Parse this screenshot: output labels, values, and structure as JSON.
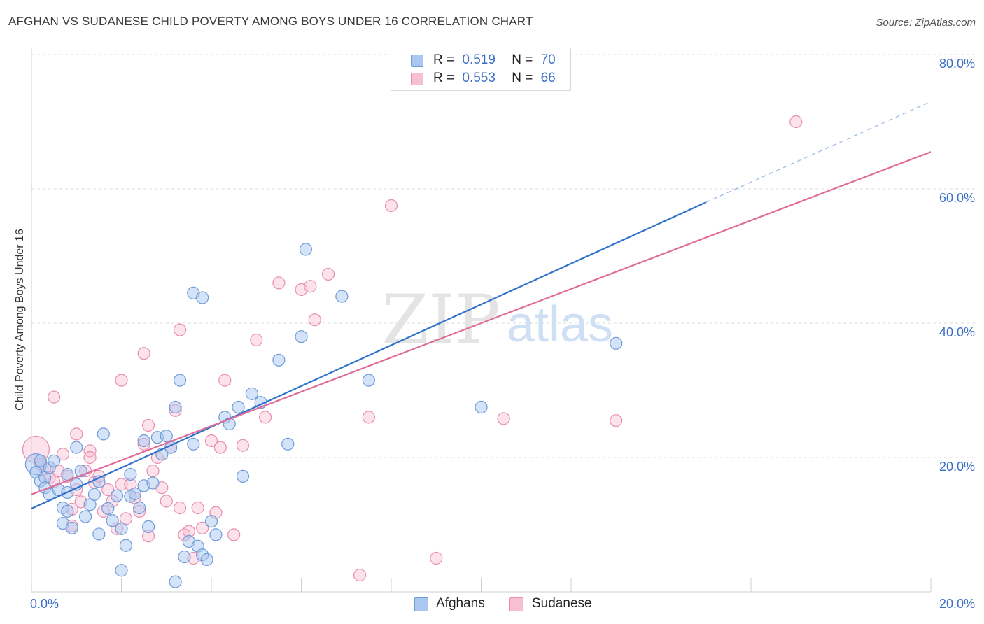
{
  "title": "AFGHAN VS SUDANESE CHILD POVERTY AMONG BOYS UNDER 16 CORRELATION CHART",
  "source": "Source: ZipAtlas.com",
  "watermark": {
    "zip": "ZIP",
    "atlas": "atlas"
  },
  "legend": {
    "r_label": "R =",
    "n_label": "N =",
    "rows": [
      {
        "name": "Afghans",
        "r": "0.519",
        "n": "70"
      },
      {
        "name": "Sudanese",
        "r": "0.553",
        "n": "66"
      }
    ]
  },
  "colors": {
    "afghans_fill": "#aac7ef",
    "afghans_stroke": "#6f9bd9",
    "afghans_line": "#2f72cc",
    "sudanese_fill": "#f6bfd2",
    "sudanese_stroke": "#e88eae",
    "sudanese_line": "#e06c98",
    "tick_label": "#3b6fc6"
  },
  "chart_data": {
    "type": "scatter",
    "title": "AFGHAN VS SUDANESE CHILD POVERTY AMONG BOYS UNDER 16 CORRELATION CHART",
    "xlabel": "",
    "ylabel": "Child Poverty Among Boys Under 16",
    "xlim": [
      0,
      20
    ],
    "ylim": [
      0,
      80
    ],
    "x_tick_labels": [
      "0.0%",
      "20.0%"
    ],
    "y_ticks": [
      20,
      40,
      60,
      80
    ],
    "y_tick_labels": [
      "20.0%",
      "40.0%",
      "60.0%",
      "80.0%"
    ],
    "grid": true,
    "legend_position": "top-center",
    "series": [
      {
        "name": "Afghans",
        "r": 0.519,
        "n": 70,
        "trend": {
          "x0": 0,
          "y0": 12.4,
          "x1": 15,
          "y1": 58.0,
          "dashed_to_x": 20,
          "dashed_to_y": 73.0
        },
        "points": [
          [
            0.1,
            19.0
          ],
          [
            0.1,
            17.8
          ],
          [
            0.2,
            19.5
          ],
          [
            0.2,
            16.5
          ],
          [
            0.3,
            17.0
          ],
          [
            0.3,
            15.5
          ],
          [
            0.4,
            18.5
          ],
          [
            0.4,
            14.5
          ],
          [
            0.5,
            19.5
          ],
          [
            0.6,
            15.2
          ],
          [
            0.7,
            12.5
          ],
          [
            0.7,
            10.2
          ],
          [
            0.8,
            12.0
          ],
          [
            0.8,
            17.5
          ],
          [
            0.9,
            9.5
          ],
          [
            1.0,
            16.0
          ],
          [
            1.0,
            21.5
          ],
          [
            1.1,
            18.0
          ],
          [
            1.2,
            11.2
          ],
          [
            1.3,
            13.0
          ],
          [
            1.4,
            14.5
          ],
          [
            1.5,
            8.6
          ],
          [
            1.6,
            23.5
          ],
          [
            1.7,
            12.4
          ],
          [
            1.8,
            10.6
          ],
          [
            1.9,
            14.3
          ],
          [
            2.0,
            9.4
          ],
          [
            2.2,
            14.2
          ],
          [
            2.3,
            14.6
          ],
          [
            2.5,
            15.8
          ],
          [
            2.7,
            16.2
          ],
          [
            2.0,
            3.2
          ],
          [
            2.1,
            6.9
          ],
          [
            2.2,
            17.5
          ],
          [
            2.4,
            12.5
          ],
          [
            2.5,
            22.5
          ],
          [
            2.6,
            9.7
          ],
          [
            2.8,
            23.0
          ],
          [
            2.9,
            20.5
          ],
          [
            3.0,
            23.2
          ],
          [
            3.1,
            21.5
          ],
          [
            3.2,
            27.5
          ],
          [
            3.3,
            31.5
          ],
          [
            3.4,
            5.2
          ],
          [
            3.5,
            7.5
          ],
          [
            3.6,
            22.0
          ],
          [
            3.7,
            6.8
          ],
          [
            3.8,
            5.5
          ],
          [
            3.9,
            4.8
          ],
          [
            4.0,
            10.5
          ],
          [
            4.1,
            8.5
          ],
          [
            4.3,
            26.0
          ],
          [
            4.4,
            25.0
          ],
          [
            4.6,
            27.5
          ],
          [
            4.7,
            17.2
          ],
          [
            4.9,
            29.5
          ],
          [
            5.1,
            28.2
          ],
          [
            5.5,
            34.5
          ],
          [
            5.7,
            22.0
          ],
          [
            6.0,
            38.0
          ],
          [
            6.1,
            51.0
          ],
          [
            6.9,
            44.0
          ],
          [
            7.5,
            31.5
          ],
          [
            10.0,
            27.5
          ],
          [
            13.0,
            37.0
          ],
          [
            3.6,
            44.5
          ],
          [
            3.8,
            43.8
          ],
          [
            3.2,
            1.5
          ],
          [
            0.8,
            14.8
          ],
          [
            1.5,
            16.4
          ]
        ]
      },
      {
        "name": "Sudanese",
        "r": 0.553,
        "n": 66,
        "trend": {
          "x0": 0,
          "y0": 14.5,
          "x1": 20,
          "y1": 65.5
        },
        "points": [
          [
            0.1,
            21.2
          ],
          [
            0.2,
            19.0
          ],
          [
            0.3,
            18.3
          ],
          [
            0.4,
            17.0
          ],
          [
            0.5,
            16.4
          ],
          [
            0.6,
            18.0
          ],
          [
            0.7,
            20.5
          ],
          [
            0.8,
            17.2
          ],
          [
            0.9,
            12.3
          ],
          [
            1.0,
            15.2
          ],
          [
            1.1,
            13.4
          ],
          [
            1.2,
            18.0
          ],
          [
            1.3,
            21.0
          ],
          [
            1.4,
            16.3
          ],
          [
            1.5,
            17.2
          ],
          [
            1.6,
            12.0
          ],
          [
            1.7,
            15.2
          ],
          [
            1.8,
            13.5
          ],
          [
            1.9,
            9.4
          ],
          [
            2.0,
            16.0
          ],
          [
            2.1,
            10.9
          ],
          [
            2.2,
            16.0
          ],
          [
            2.3,
            14.0
          ],
          [
            2.4,
            12.0
          ],
          [
            2.5,
            22.0
          ],
          [
            2.6,
            24.8
          ],
          [
            2.7,
            18.0
          ],
          [
            2.8,
            20.0
          ],
          [
            2.9,
            15.5
          ],
          [
            3.0,
            13.5
          ],
          [
            3.1,
            21.5
          ],
          [
            3.2,
            27.0
          ],
          [
            3.3,
            12.5
          ],
          [
            3.4,
            8.5
          ],
          [
            3.5,
            9.0
          ],
          [
            3.6,
            5.0
          ],
          [
            3.7,
            12.5
          ],
          [
            3.8,
            9.5
          ],
          [
            4.0,
            22.5
          ],
          [
            4.1,
            11.8
          ],
          [
            4.2,
            21.5
          ],
          [
            4.3,
            31.5
          ],
          [
            4.5,
            8.5
          ],
          [
            4.7,
            21.8
          ],
          [
            5.0,
            37.5
          ],
          [
            5.2,
            26.0
          ],
          [
            5.5,
            46.0
          ],
          [
            6.0,
            45.0
          ],
          [
            6.2,
            45.5
          ],
          [
            6.3,
            40.5
          ],
          [
            6.6,
            47.3
          ],
          [
            7.3,
            2.5
          ],
          [
            7.5,
            26.0
          ],
          [
            8.0,
            57.5
          ],
          [
            9.0,
            5.0
          ],
          [
            10.5,
            25.8
          ],
          [
            13.0,
            25.5
          ],
          [
            17.0,
            70.0
          ],
          [
            2.0,
            31.5
          ],
          [
            2.5,
            35.5
          ],
          [
            3.3,
            39.0
          ],
          [
            0.5,
            29.0
          ],
          [
            1.0,
            23.5
          ],
          [
            1.3,
            20.0
          ],
          [
            0.9,
            9.8
          ],
          [
            2.6,
            8.3
          ]
        ]
      }
    ]
  }
}
